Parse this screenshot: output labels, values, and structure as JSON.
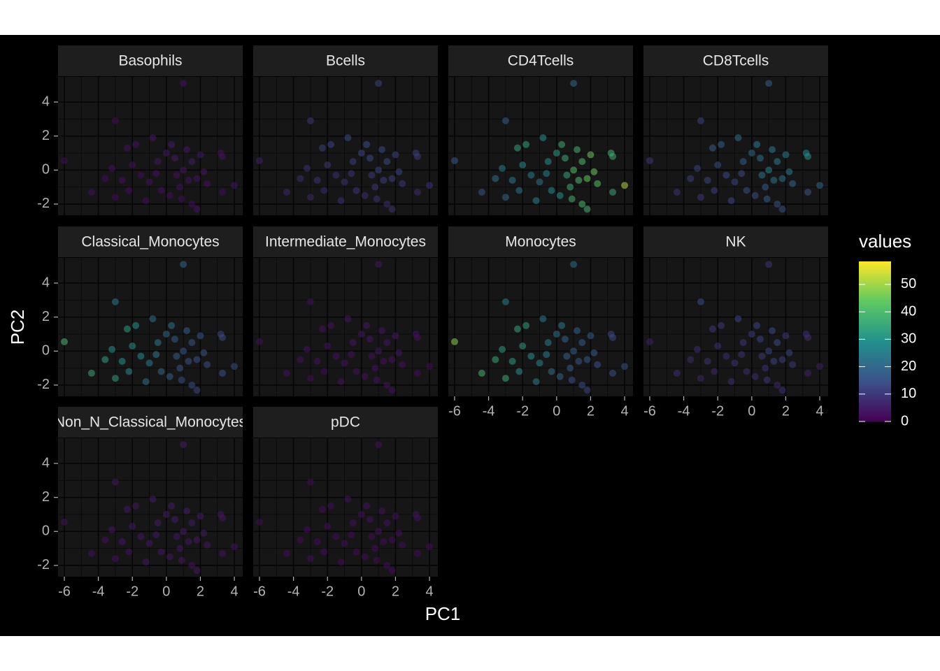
{
  "chart_data": {
    "type": "scatter",
    "x_label": "PC1",
    "y_label": "PC2",
    "x": [
      1.0,
      -3.0,
      -6.0,
      -4.4,
      4.0,
      3.2,
      3.3,
      3.3,
      1.8,
      1.5,
      -0.8,
      -1.8,
      -2.3,
      -3.0,
      -3.6,
      -2.6,
      -2.0,
      -1.5,
      -1.0,
      -0.5,
      0.0,
      0.3,
      0.6,
      1.0,
      1.2,
      1.5,
      1.8,
      2.2,
      2.4,
      0.8,
      0.2,
      -0.3,
      -1.2,
      -2.2,
      -3.2,
      0.5,
      1.3,
      0.9,
      -0.6,
      2.0
    ],
    "y": [
      5.1,
      2.9,
      0.55,
      -1.3,
      -0.9,
      1.0,
      0.8,
      -1.3,
      -2.3,
      -2.0,
      1.9,
      1.5,
      1.3,
      -1.6,
      -0.5,
      -0.6,
      0.3,
      -0.3,
      -0.7,
      0.5,
      1.0,
      1.5,
      -0.3,
      0.0,
      1.2,
      0.5,
      -0.5,
      -0.1,
      -0.8,
      -1.0,
      -1.5,
      -1.2,
      -1.8,
      -1.2,
      0.1,
      0.7,
      -0.6,
      -1.7,
      -0.2,
      0.9
    ],
    "xlim": [
      -6.37,
      4.49
    ],
    "xticks": [
      -6,
      -4,
      -2,
      0,
      2,
      4
    ],
    "ylim": [
      -2.66,
      5.48
    ],
    "yticks": [
      -2,
      0,
      2,
      4
    ],
    "grid": true,
    "colorbar": {
      "title": "values",
      "lim": [
        0,
        58.4
      ],
      "ticks": [
        0,
        10,
        20,
        30,
        40,
        50
      ],
      "colormap": "viridis"
    },
    "facets": [
      {
        "name": "Basophils",
        "values": [
          3,
          2,
          2,
          3,
          4,
          3,
          3,
          2,
          3,
          2,
          4,
          3,
          3,
          2,
          2,
          3,
          3,
          2,
          3,
          4,
          4,
          5,
          3,
          4,
          4,
          5,
          3,
          4,
          3,
          3,
          2,
          3,
          2,
          2,
          3,
          5,
          3,
          2,
          3,
          4
        ]
      },
      {
        "name": "Bcells",
        "values": [
          12,
          10,
          6,
          7,
          9,
          11,
          10,
          8,
          9,
          8,
          14,
          12,
          11,
          7,
          8,
          9,
          10,
          8,
          9,
          11,
          13,
          14,
          10,
          12,
          13,
          14,
          11,
          12,
          10,
          10,
          8,
          9,
          8,
          7,
          9,
          13,
          11,
          9,
          9,
          12
        ]
      },
      {
        "name": "CD4Tcells",
        "values": [
          20,
          18,
          17,
          15,
          52,
          38,
          36,
          35,
          38,
          40,
          30,
          33,
          34,
          20,
          22,
          24,
          28,
          25,
          22,
          30,
          32,
          36,
          34,
          42,
          38,
          40,
          44,
          45,
          42,
          36,
          30,
          28,
          26,
          22,
          24,
          35,
          40,
          38,
          26,
          45
        ]
      },
      {
        "name": "CD8Tcells",
        "values": [
          18,
          12,
          10,
          9,
          20,
          28,
          30,
          16,
          14,
          15,
          22,
          18,
          18,
          10,
          11,
          12,
          14,
          13,
          12,
          18,
          20,
          24,
          22,
          26,
          24,
          25,
          22,
          24,
          20,
          18,
          14,
          14,
          12,
          11,
          12,
          22,
          22,
          18,
          13,
          26
        ]
      },
      {
        "name": "Classical_Monocytes",
        "values": [
          20,
          25,
          40,
          35,
          14,
          12,
          13,
          15,
          12,
          14,
          22,
          30,
          32,
          33,
          33,
          30,
          30,
          28,
          25,
          24,
          20,
          22,
          18,
          16,
          18,
          16,
          15,
          16,
          14,
          16,
          18,
          20,
          22,
          28,
          30,
          18,
          15,
          14,
          24,
          16
        ]
      },
      {
        "name": "Intermediate_Monocytes",
        "values": [
          4,
          3,
          3,
          3,
          2,
          3,
          3,
          2,
          3,
          3,
          4,
          3,
          3,
          2,
          3,
          3,
          3,
          3,
          3,
          4,
          4,
          4,
          3,
          4,
          4,
          4,
          3,
          4,
          3,
          3,
          3,
          3,
          3,
          2,
          3,
          4,
          3,
          3,
          3,
          4
        ]
      },
      {
        "name": "Monocytes",
        "values": [
          22,
          26,
          48,
          38,
          14,
          12,
          13,
          15,
          12,
          14,
          24,
          32,
          34,
          36,
          35,
          32,
          32,
          30,
          27,
          26,
          22,
          24,
          19,
          17,
          19,
          17,
          16,
          17,
          15,
          17,
          19,
          22,
          24,
          30,
          32,
          19,
          16,
          15,
          26,
          17
        ]
      },
      {
        "name": "NK",
        "values": [
          10,
          14,
          6,
          8,
          6,
          8,
          8,
          6,
          8,
          7,
          12,
          10,
          10,
          7,
          8,
          9,
          9,
          8,
          9,
          10,
          11,
          12,
          10,
          12,
          13,
          14,
          11,
          12,
          10,
          9,
          8,
          8,
          8,
          7,
          8,
          12,
          12,
          10,
          9,
          10
        ]
      },
      {
        "name": "Non_N_Classical_Monocytes",
        "values": [
          5,
          4,
          3,
          3,
          3,
          4,
          4,
          3,
          4,
          3,
          5,
          4,
          4,
          3,
          3,
          4,
          4,
          4,
          4,
          5,
          5,
          5,
          4,
          5,
          5,
          5,
          4,
          5,
          4,
          4,
          4,
          4,
          4,
          3,
          4,
          5,
          4,
          4,
          4,
          5
        ]
      },
      {
        "name": "pDC",
        "values": [
          3,
          2,
          2,
          2,
          2,
          3,
          3,
          2,
          2,
          2,
          3,
          2,
          2,
          2,
          2,
          2,
          2,
          2,
          2,
          3,
          3,
          3,
          2,
          3,
          3,
          3,
          2,
          3,
          2,
          2,
          2,
          2,
          2,
          2,
          2,
          3,
          2,
          2,
          2,
          3
        ]
      }
    ]
  }
}
